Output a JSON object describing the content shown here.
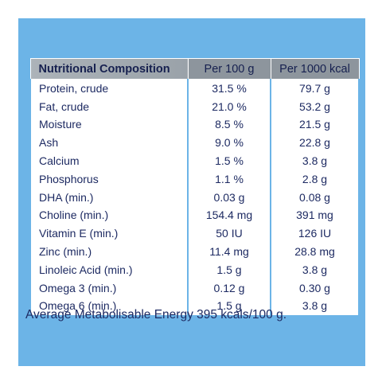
{
  "table": {
    "headers": [
      "Nutritional Composition",
      "Per 100 g",
      "Per 1000 kcal"
    ],
    "rows": [
      {
        "name": "Protein, crude",
        "per100g": "31.5 %",
        "per1000kcal": "79.7 g"
      },
      {
        "name": "Fat, crude",
        "per100g": "21.0 %",
        "per1000kcal": "53.2 g"
      },
      {
        "name": "Moisture",
        "per100g": "8.5 %",
        "per1000kcal": "21.5 g"
      },
      {
        "name": "Ash",
        "per100g": "9.0 %",
        "per1000kcal": "22.8 g"
      },
      {
        "name": "Calcium",
        "per100g": "1.5 %",
        "per1000kcal": "3.8 g"
      },
      {
        "name": "Phosphorus",
        "per100g": "1.1 %",
        "per1000kcal": "2.8 g"
      },
      {
        "name": "DHA (min.)",
        "per100g": "0.03 g",
        "per1000kcal": "0.08 g"
      },
      {
        "name": "Choline (min.)",
        "per100g": "154.4 mg",
        "per1000kcal": "391 mg"
      },
      {
        "name": "Vitamin E (min.)",
        "per100g": "50 IU",
        "per1000kcal": "126 IU"
      },
      {
        "name": "Zinc (min.)",
        "per100g": "11.4 mg",
        "per1000kcal": "28.8 mg"
      },
      {
        "name": "Linoleic Acid (min.)",
        "per100g": "1.5 g",
        "per1000kcal": "3.8 g"
      },
      {
        "name": "Omega 3 (min.)",
        "per100g": "0.12 g",
        "per1000kcal": "0.30 g"
      },
      {
        "name": "Omega 6 (min.)",
        "per100g": "1.5 g",
        "per1000kcal": "3.8 g"
      }
    ]
  },
  "footer": "Average Metabolisable Energy 395 kcals/100 g.",
  "colors": {
    "background_panel": "#6cb4e7",
    "header_gray": "#8d959d",
    "text_navy": "#1d2a62",
    "cell_white": "#ffffff"
  }
}
